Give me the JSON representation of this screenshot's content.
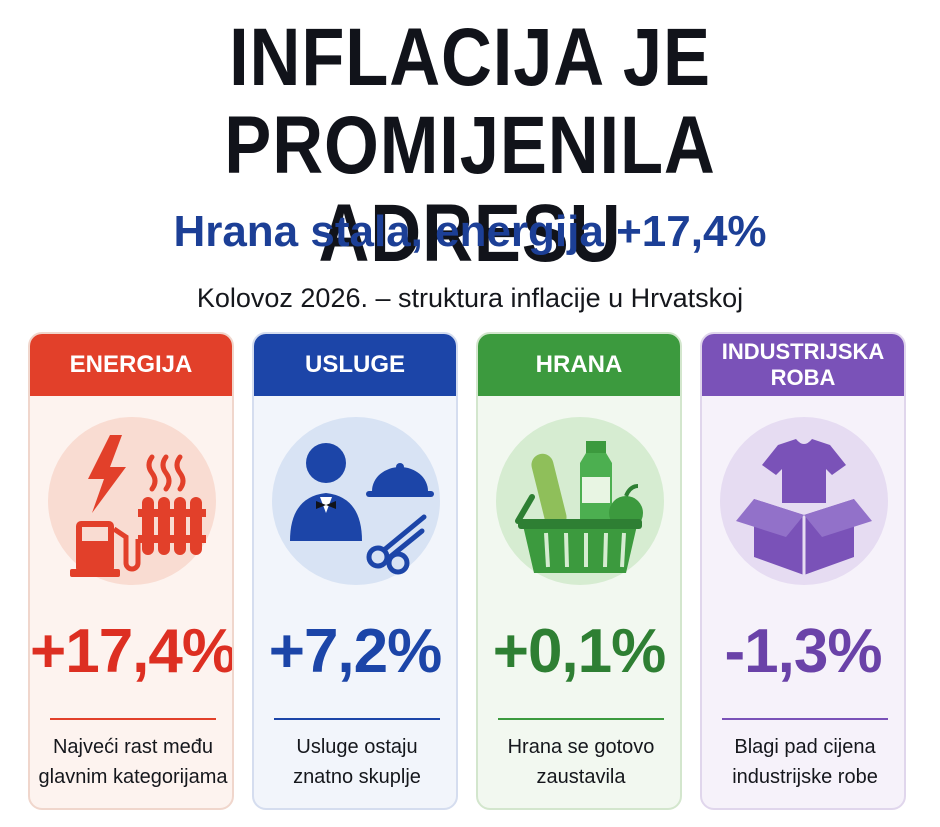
{
  "header": {
    "title_line1": "INFLACIJA JE",
    "title_line2": "PROMIJENILA ADRESU",
    "subtitle": "Hrana stala, energija +17,4%",
    "caption": "Kolovoz 2026. – struktura inflacije u Hrvatskoj"
  },
  "cards": [
    {
      "label": "ENERGIJA",
      "value": "+17,4%",
      "desc_line1": "Najveći rast među",
      "desc_line2": "glavnim kategorijama",
      "color": "#e2402a",
      "icon": "energy-icon"
    },
    {
      "label": "USLUGE",
      "value": "+7,2%",
      "desc_line1": "Usluge ostaju",
      "desc_line2": "znatno skuplje",
      "color": "#1c45a8",
      "icon": "services-icon"
    },
    {
      "label": "HRANA",
      "value": "+0,1%",
      "desc_line1": "Hrana se gotovo",
      "desc_line2": "zaustavila",
      "color": "#3c9a3e",
      "icon": "grocery-basket-icon"
    },
    {
      "label_line1": "INDUSTRIJSKA",
      "label_line2": "ROBA",
      "value": "-1,3%",
      "desc_line1": "Blagi pad cijena",
      "desc_line2": "industrijske robe",
      "color": "#7a52b8",
      "icon": "goods-box-icon"
    }
  ]
}
